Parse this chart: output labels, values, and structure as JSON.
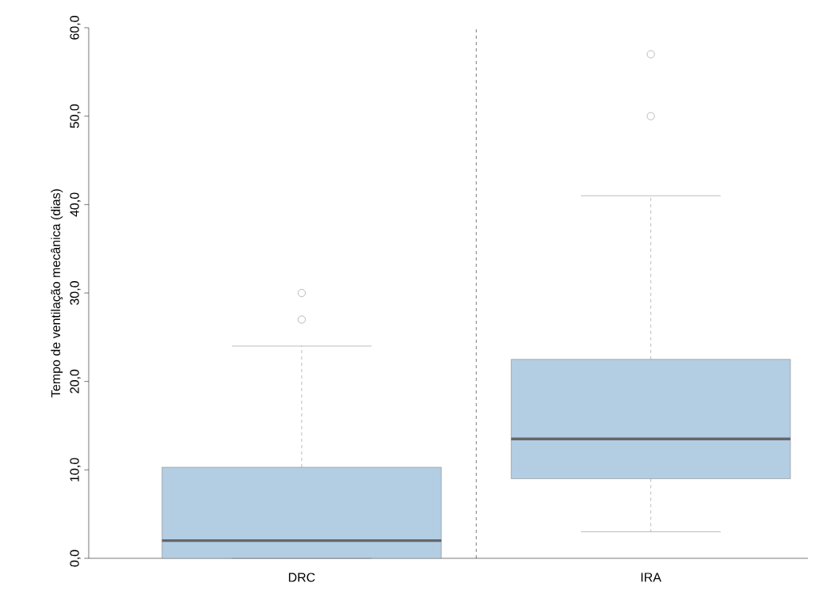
{
  "chart_data": {
    "type": "box",
    "ylabel": "Tempo de ventilação mecânica (dias)",
    "categories": [
      "DRC",
      "IRA"
    ],
    "boxes": [
      {
        "low": 0,
        "q1": 0,
        "median": 2,
        "q3": 10.3,
        "high": 24,
        "outliers": [
          27,
          30
        ]
      },
      {
        "low": 3,
        "q1": 9,
        "median": 13.5,
        "q3": 22.5,
        "high": 41,
        "outliers": [
          50,
          57
        ]
      }
    ],
    "color": "#b3cde3",
    "ylim": [
      0,
      60
    ],
    "yticks": [
      {
        "value": 0,
        "label": "0,0"
      },
      {
        "value": 10,
        "label": "10,0"
      },
      {
        "value": 20,
        "label": "20,0"
      },
      {
        "value": 30,
        "label": "30,0"
      },
      {
        "value": 40,
        "label": "40,0"
      },
      {
        "value": 50,
        "label": "50,0"
      },
      {
        "value": 60,
        "label": "60,0"
      }
    ],
    "grid": false
  }
}
